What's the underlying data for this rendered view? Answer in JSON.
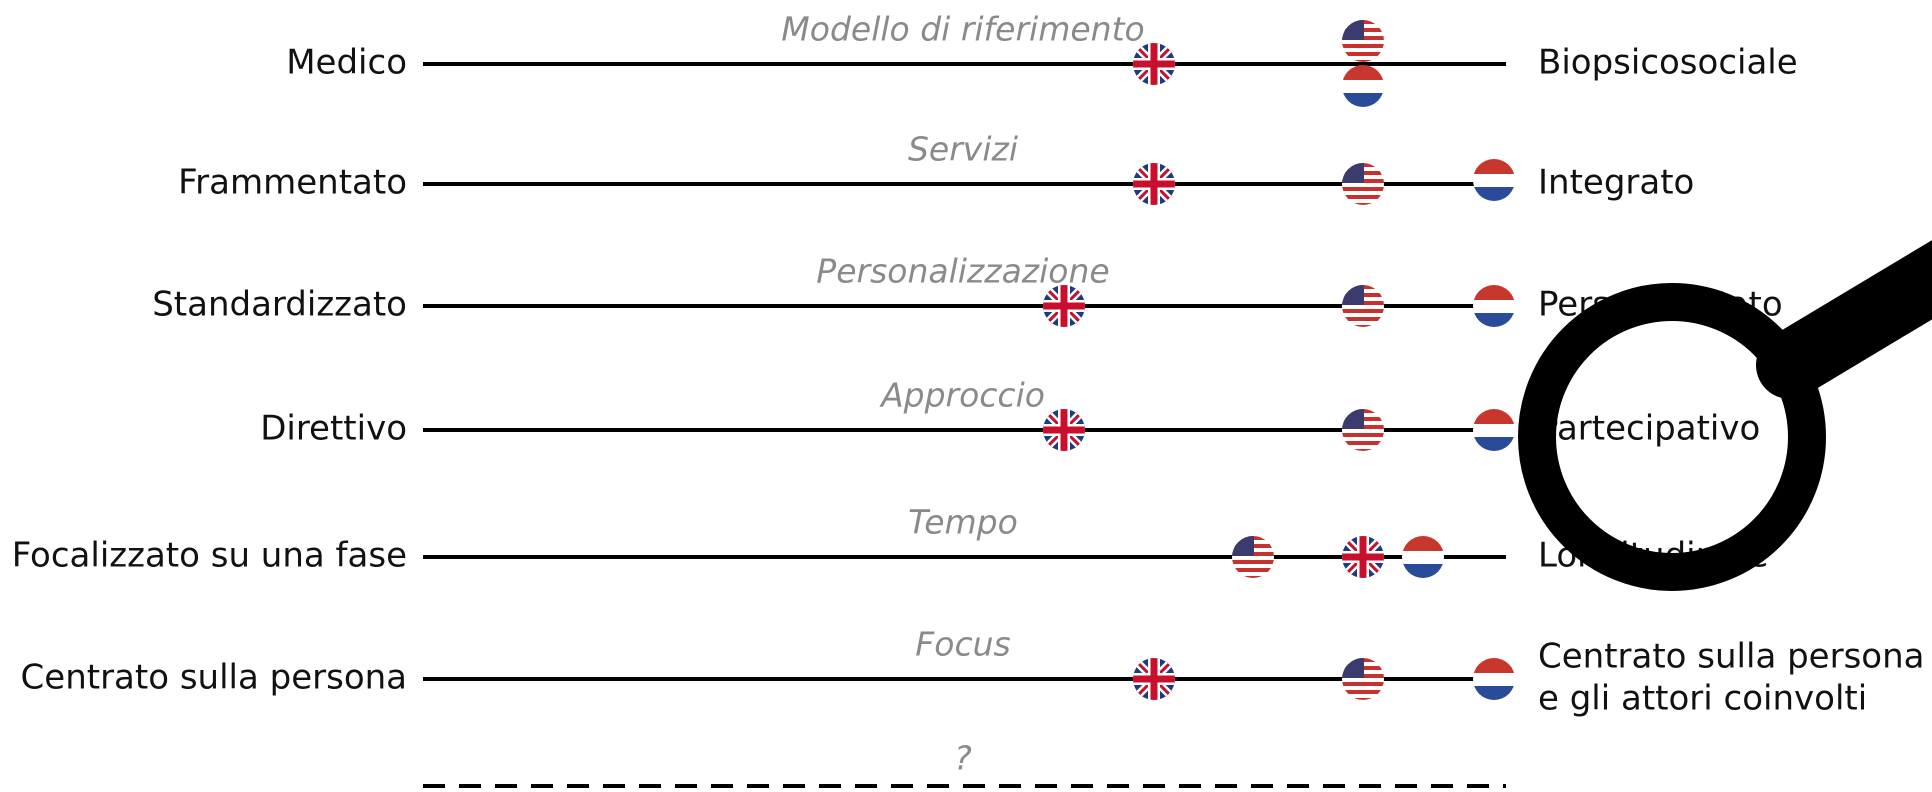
{
  "rows": [
    {
      "left": "Medico",
      "category": "Modello di riferimento",
      "right": [
        "Biopsicosociale"
      ]
    },
    {
      "left": "Frammentato",
      "category": "Servizi",
      "right": [
        "Integrato"
      ]
    },
    {
      "left": "Standardizzato",
      "category": "Personalizzazione",
      "right": [
        "Personalizzato"
      ]
    },
    {
      "left": "Direttivo",
      "category": "Approccio",
      "right": [
        "Partecipativo"
      ]
    },
    {
      "left": "Focalizzato su una fase",
      "category": "Tempo",
      "right": [
        "Longitudinale"
      ]
    },
    {
      "left": "Centrato sulla persona",
      "category": "Focus",
      "right": [
        "Centrato sulla persona",
        "e gli attori coinvolti"
      ]
    }
  ],
  "extra": {
    "category": "?"
  }
}
